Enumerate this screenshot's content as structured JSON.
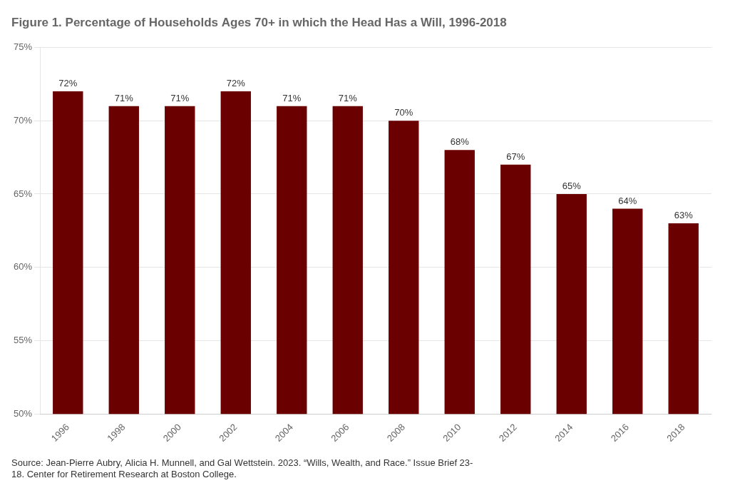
{
  "chart_data": {
    "type": "bar",
    "title": "Figure 1. Percentage of Households Ages 70+ in which the Head Has a Will, 1996-2018",
    "annotations": [
      "Source: Jean-Pierre Aubry, Alicia H. Munnell, and Gal Wettstein. 2023. “Wills, Wealth, and Race.” Issue Brief 23-",
      "18. Center for Retirement Research at Boston College."
    ],
    "categories": [
      "1996",
      "1998",
      "2000",
      "2002",
      "2004",
      "2006",
      "2008",
      "2010",
      "2012",
      "2014",
      "2016",
      "2018"
    ],
    "values": [
      72,
      71,
      71,
      72,
      71,
      71,
      70,
      68,
      67,
      65,
      64,
      63
    ],
    "value_labels": [
      "72%",
      "71%",
      "71%",
      "72%",
      "71%",
      "71%",
      "70%",
      "68%",
      "67%",
      "65%",
      "64%",
      "63%"
    ],
    "data_labels": true,
    "color": "#6B0000",
    "ylim": [
      50,
      75
    ],
    "yticks": [
      {
        "value": 50,
        "label": "50%"
      },
      {
        "value": 55,
        "label": "55%"
      },
      {
        "value": 60,
        "label": "60%"
      },
      {
        "value": 65,
        "label": "65%"
      },
      {
        "value": 70,
        "label": "70%"
      },
      {
        "value": 75,
        "label": "75%"
      }
    ],
    "grid": true
  }
}
